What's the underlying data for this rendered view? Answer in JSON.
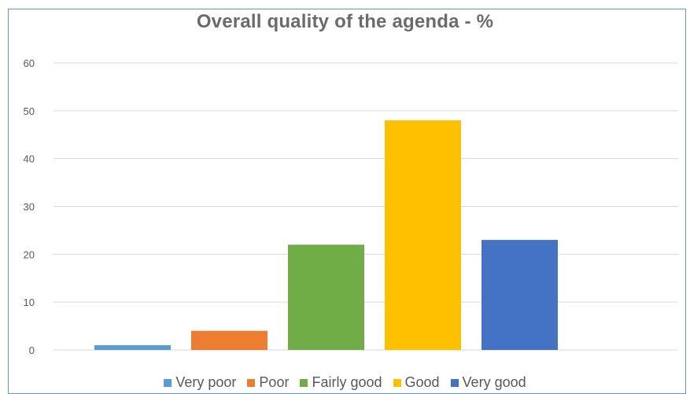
{
  "chart_data": {
    "type": "bar",
    "title": "Overall quality of the agenda - %",
    "categories": [
      "Very poor",
      "Poor",
      "Fairly good",
      "Good",
      "Very good"
    ],
    "values": [
      1,
      4,
      22,
      48,
      23
    ],
    "colors": [
      "#5b9bd5",
      "#ed7d31",
      "#70ad47",
      "#ffc000",
      "#4472c4"
    ],
    "ylim": [
      0,
      60
    ],
    "yticks": [
      "0",
      "10",
      "20",
      "30",
      "40",
      "50",
      "60"
    ],
    "grid": true,
    "legend_position": "bottom"
  }
}
